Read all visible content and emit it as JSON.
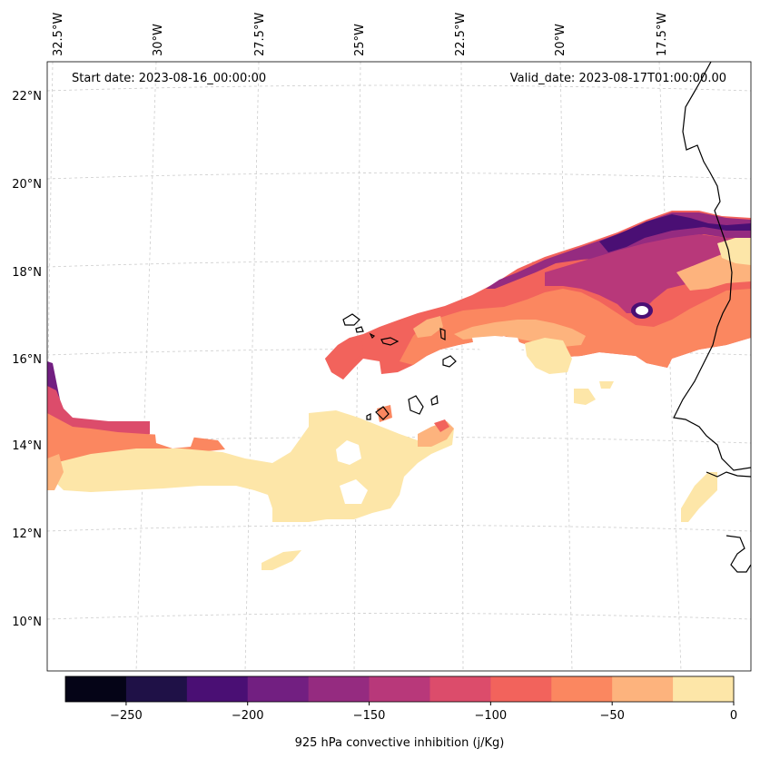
{
  "header": {
    "start_date": "Start date: 2023-08-16_00:00:00",
    "valid_date": "Valid_date: 2023-08-17T01:00:00.00"
  },
  "lon_labels": [
    "32.5°W",
    "30°W",
    "27.5°W",
    "25°W",
    "22.5°W",
    "20°W",
    "17.5°W"
  ],
  "lat_labels": [
    "22°N",
    "20°N",
    "18°N",
    "16°N",
    "14°N",
    "12°N",
    "10°N"
  ],
  "colorbar": {
    "label": "925 hPa convective inhibition (j/Kg)",
    "tick_labels": [
      "−250",
      "−200",
      "−150",
      "−100",
      "−50",
      "0"
    ],
    "range": [
      -275,
      0
    ],
    "step": 25,
    "colors": [
      "#050417",
      "#1f1147",
      "#4a0f74",
      "#721f81",
      "#952b80",
      "#b8387a",
      "#dc4c6b",
      "#f2635c",
      "#fb8760",
      "#fdb37d",
      "#fde6a8"
    ]
  }
}
